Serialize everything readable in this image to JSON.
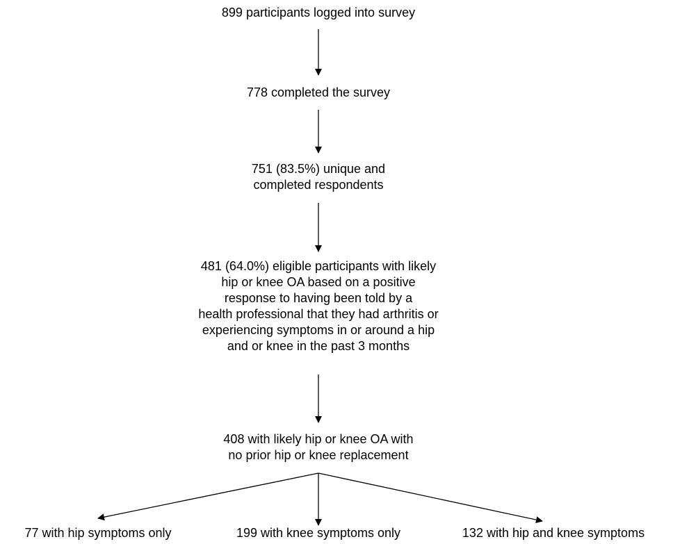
{
  "flowchart": {
    "step1": {
      "lines": [
        "899 participants logged into survey"
      ]
    },
    "step2": {
      "lines": [
        "778 completed the survey"
      ]
    },
    "step3": {
      "lines": [
        "751 (83.5%) unique and",
        "completed respondents"
      ]
    },
    "step4": {
      "lines": [
        "481 (64.0%) eligible participants with likely",
        "hip or knee OA based on a positive",
        "response to having been told by a",
        "health professional that they had arthritis or",
        "experiencing symptoms in or around a hip",
        "and or knee in the past 3 months"
      ]
    },
    "step5": {
      "lines": [
        "408 with likely hip or knee OA with",
        "no prior hip or knee replacement"
      ]
    },
    "outcomes": {
      "hip_only": "77 with hip symptoms only",
      "knee_only": "199 with knee symptoms only",
      "hip_and_knee": "132 with hip and knee symptoms"
    }
  }
}
